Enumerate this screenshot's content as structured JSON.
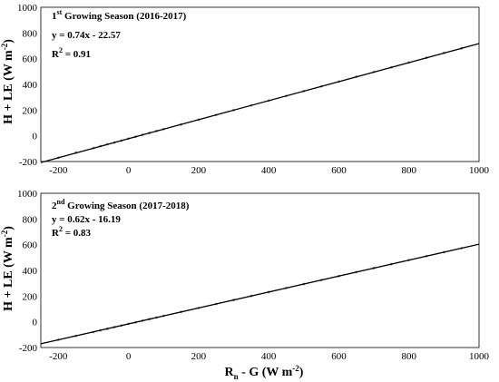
{
  "chart_data": [
    {
      "type": "scatter",
      "season_label": {
        "prefix": "1",
        "sup": "st",
        "rest": " Growing Season (2016-2017)"
      },
      "equation": "y = 0.74x - 22.57",
      "r2": {
        "label": "R",
        "sup": "2",
        "value": " = 0.91"
      },
      "ylabel": {
        "main": "H + LE (W m",
        "sup": "-2",
        "end": ")"
      },
      "xlim": [
        -250,
        1000
      ],
      "ylim": [
        -200,
        1000
      ],
      "xticks": [
        -200,
        0,
        200,
        400,
        600,
        800,
        1000
      ],
      "yticks": [
        -200,
        0,
        200,
        400,
        600,
        800,
        1000
      ],
      "fit": {
        "slope": 0.74,
        "intercept": -22.57,
        "x_range": [
          -250,
          1000
        ]
      },
      "point_color": "#8a8a8a",
      "series": [
        {
          "x": [
            -200,
            -150,
            -100,
            -80,
            -60,
            -40,
            -20,
            0,
            20,
            40,
            60,
            80,
            100,
            150,
            200,
            250,
            300,
            350,
            400,
            450,
            500,
            550,
            600,
            650,
            700,
            750,
            800,
            850,
            900,
            950
          ],
          "y": [
            -170,
            -130,
            -95,
            -80,
            -65,
            -52,
            -38,
            -22,
            -8,
            8,
            22,
            37,
            52,
            88,
            125,
            162,
            200,
            237,
            274,
            310,
            348,
            385,
            422,
            460,
            497,
            533,
            570,
            607,
            645,
            680
          ]
        }
      ]
    },
    {
      "type": "scatter",
      "season_label": {
        "prefix": "2",
        "sup": "nd",
        "rest": " Growing Season (2017-2018)"
      },
      "equation": "y = 0.62x - 16.19",
      "r2": {
        "label": "R",
        "sup": "2",
        "value": " = 0.83"
      },
      "ylabel": {
        "main": "H + LE (W m",
        "sup": "-2",
        "end": ")"
      },
      "xlabel": {
        "main": "R",
        "sub": "n",
        "rest": " - G (W m",
        "sup": "-2",
        "end": ")"
      },
      "xlim": [
        -250,
        1000
      ],
      "ylim": [
        -200,
        1000
      ],
      "xticks": [
        -200,
        0,
        200,
        400,
        600,
        800,
        1000
      ],
      "yticks": [
        -200,
        0,
        200,
        400,
        600,
        800,
        1000
      ],
      "fit": {
        "slope": 0.62,
        "intercept": -16.19,
        "x_range": [
          -250,
          1000
        ]
      },
      "point_color": "#8a8a8a",
      "series": [
        {
          "x": [
            -200,
            -150,
            -100,
            -80,
            -60,
            -40,
            -20,
            0,
            20,
            40,
            60,
            80,
            100,
            150,
            200,
            250,
            300,
            350,
            400,
            450,
            500,
            550,
            600,
            650,
            700,
            750,
            800,
            850,
            900,
            950
          ],
          "y": [
            -140,
            -110,
            -80,
            -66,
            -54,
            -41,
            -29,
            -16,
            -4,
            9,
            21,
            34,
            46,
            77,
            108,
            139,
            170,
            201,
            232,
            263,
            294,
            325,
            356,
            387,
            418,
            449,
            480,
            511,
            542,
            573
          ]
        }
      ]
    }
  ]
}
